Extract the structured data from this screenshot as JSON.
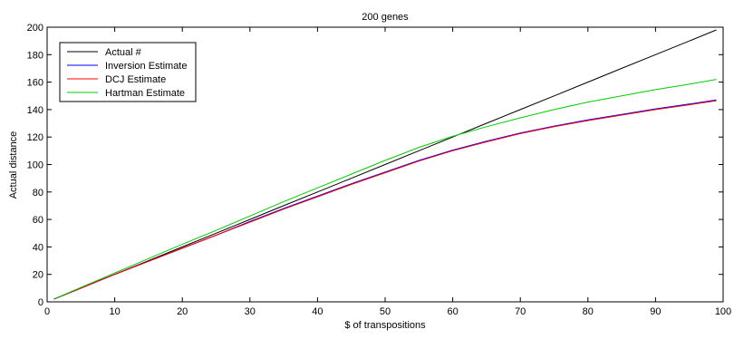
{
  "chart_data": {
    "type": "line",
    "title": "200 genes",
    "xlabel": "$ of transpositions",
    "ylabel": "Actual distance",
    "xlim": [
      0,
      100
    ],
    "ylim": [
      0,
      200
    ],
    "x_ticks": [
      0,
      10,
      20,
      30,
      40,
      50,
      60,
      70,
      80,
      90,
      100
    ],
    "y_ticks": [
      0,
      20,
      40,
      60,
      80,
      100,
      120,
      140,
      160,
      180,
      200
    ],
    "grid": false,
    "legend_position": "top-left",
    "x": [
      1,
      5,
      10,
      15,
      20,
      25,
      30,
      35,
      40,
      45,
      50,
      55,
      60,
      65,
      70,
      75,
      80,
      85,
      90,
      95,
      99
    ],
    "series": [
      {
        "name": "Actual #",
        "color": "#000000",
        "values": [
          2,
          10,
          20,
          30,
          40,
          50,
          60,
          70,
          80,
          90,
          100,
          110,
          120,
          130,
          140,
          150,
          160,
          170,
          180,
          190,
          198
        ]
      },
      {
        "name": "Inversion Estimate",
        "color": "#0000ff",
        "values": [
          2,
          10,
          20,
          29.5,
          39,
          48.5,
          58.5,
          68,
          77,
          86,
          94.5,
          103,
          110.5,
          117,
          123,
          128,
          132.5,
          136.5,
          140.5,
          144,
          147
        ]
      },
      {
        "name": "DCJ Estimate",
        "color": "#ff0000",
        "values": [
          2,
          10,
          20,
          29.5,
          39,
          48.5,
          58,
          67.5,
          76.5,
          85.5,
          94,
          102.5,
          110,
          116.5,
          122.5,
          127.5,
          132,
          136,
          140,
          143.5,
          146.5
        ]
      },
      {
        "name": "Hartman Estimate",
        "color": "#00cc00",
        "values": [
          2,
          10.5,
          21,
          31.5,
          42,
          52,
          62.5,
          73,
          83,
          93,
          103,
          112.5,
          120.5,
          127.5,
          134,
          140,
          145.5,
          150,
          154.5,
          158.5,
          162
        ]
      }
    ]
  }
}
